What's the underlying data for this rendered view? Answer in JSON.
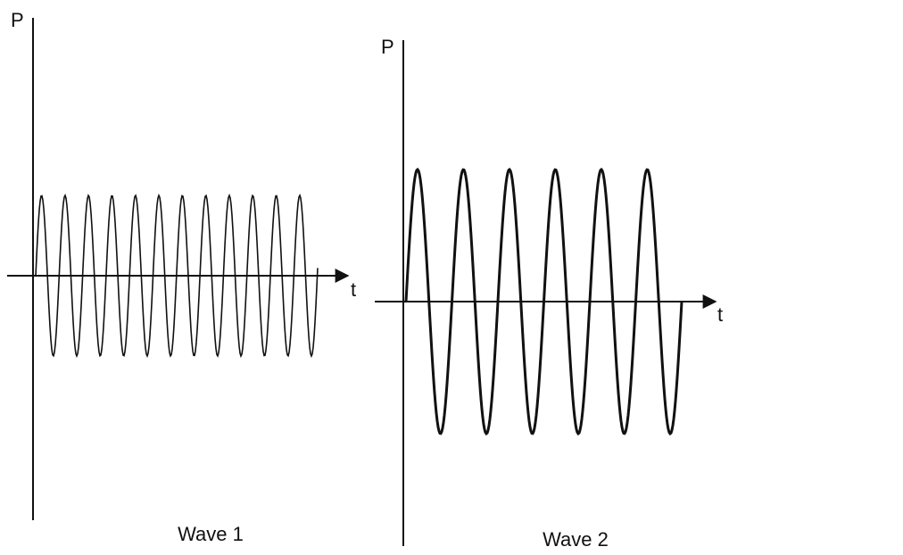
{
  "panels": [
    {
      "y_label": "P",
      "x_label": "t",
      "caption": "Wave 1"
    },
    {
      "y_label": "P",
      "x_label": "t",
      "caption": "Wave 2"
    }
  ]
}
